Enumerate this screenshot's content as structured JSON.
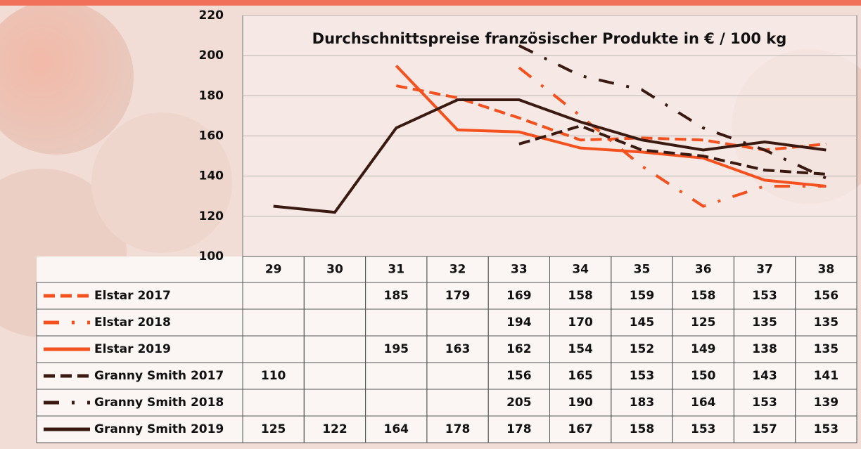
{
  "chart_data": {
    "type": "line",
    "title": "Durchschnittspreise französischer Produkte in € / 100 kg",
    "categories": [
      "29",
      "30",
      "31",
      "32",
      "33",
      "34",
      "35",
      "36",
      "37",
      "38"
    ],
    "ylim": [
      100,
      220
    ],
    "yticks": [
      100,
      120,
      140,
      160,
      180,
      200,
      220
    ],
    "grid": true,
    "series": [
      {
        "name": "Elstar 2017",
        "color": "#f4511e",
        "dash": "dashed",
        "values": [
          null,
          null,
          185,
          179,
          169,
          158,
          159,
          158,
          153,
          156
        ]
      },
      {
        "name": "Elstar 2018",
        "color": "#f4511e",
        "dash": "dashdot",
        "values": [
          null,
          null,
          null,
          null,
          194,
          170,
          145,
          125,
          135,
          135
        ]
      },
      {
        "name": "Elstar 2019",
        "color": "#f4511e",
        "dash": "solid",
        "values": [
          null,
          null,
          195,
          163,
          162,
          154,
          152,
          149,
          138,
          135
        ]
      },
      {
        "name": "Granny Smith 2017",
        "color": "#3a1a10",
        "dash": "dashed",
        "values": [
          110,
          null,
          null,
          null,
          156,
          165,
          153,
          150,
          143,
          141
        ]
      },
      {
        "name": "Granny Smith 2018",
        "color": "#3a1a10",
        "dash": "dashdot",
        "values": [
          null,
          null,
          null,
          null,
          205,
          190,
          183,
          164,
          153,
          139
        ]
      },
      {
        "name": "Granny Smith 2019",
        "color": "#3a1a10",
        "dash": "solid",
        "values": [
          125,
          122,
          164,
          178,
          178,
          167,
          158,
          153,
          157,
          153
        ]
      }
    ]
  }
}
